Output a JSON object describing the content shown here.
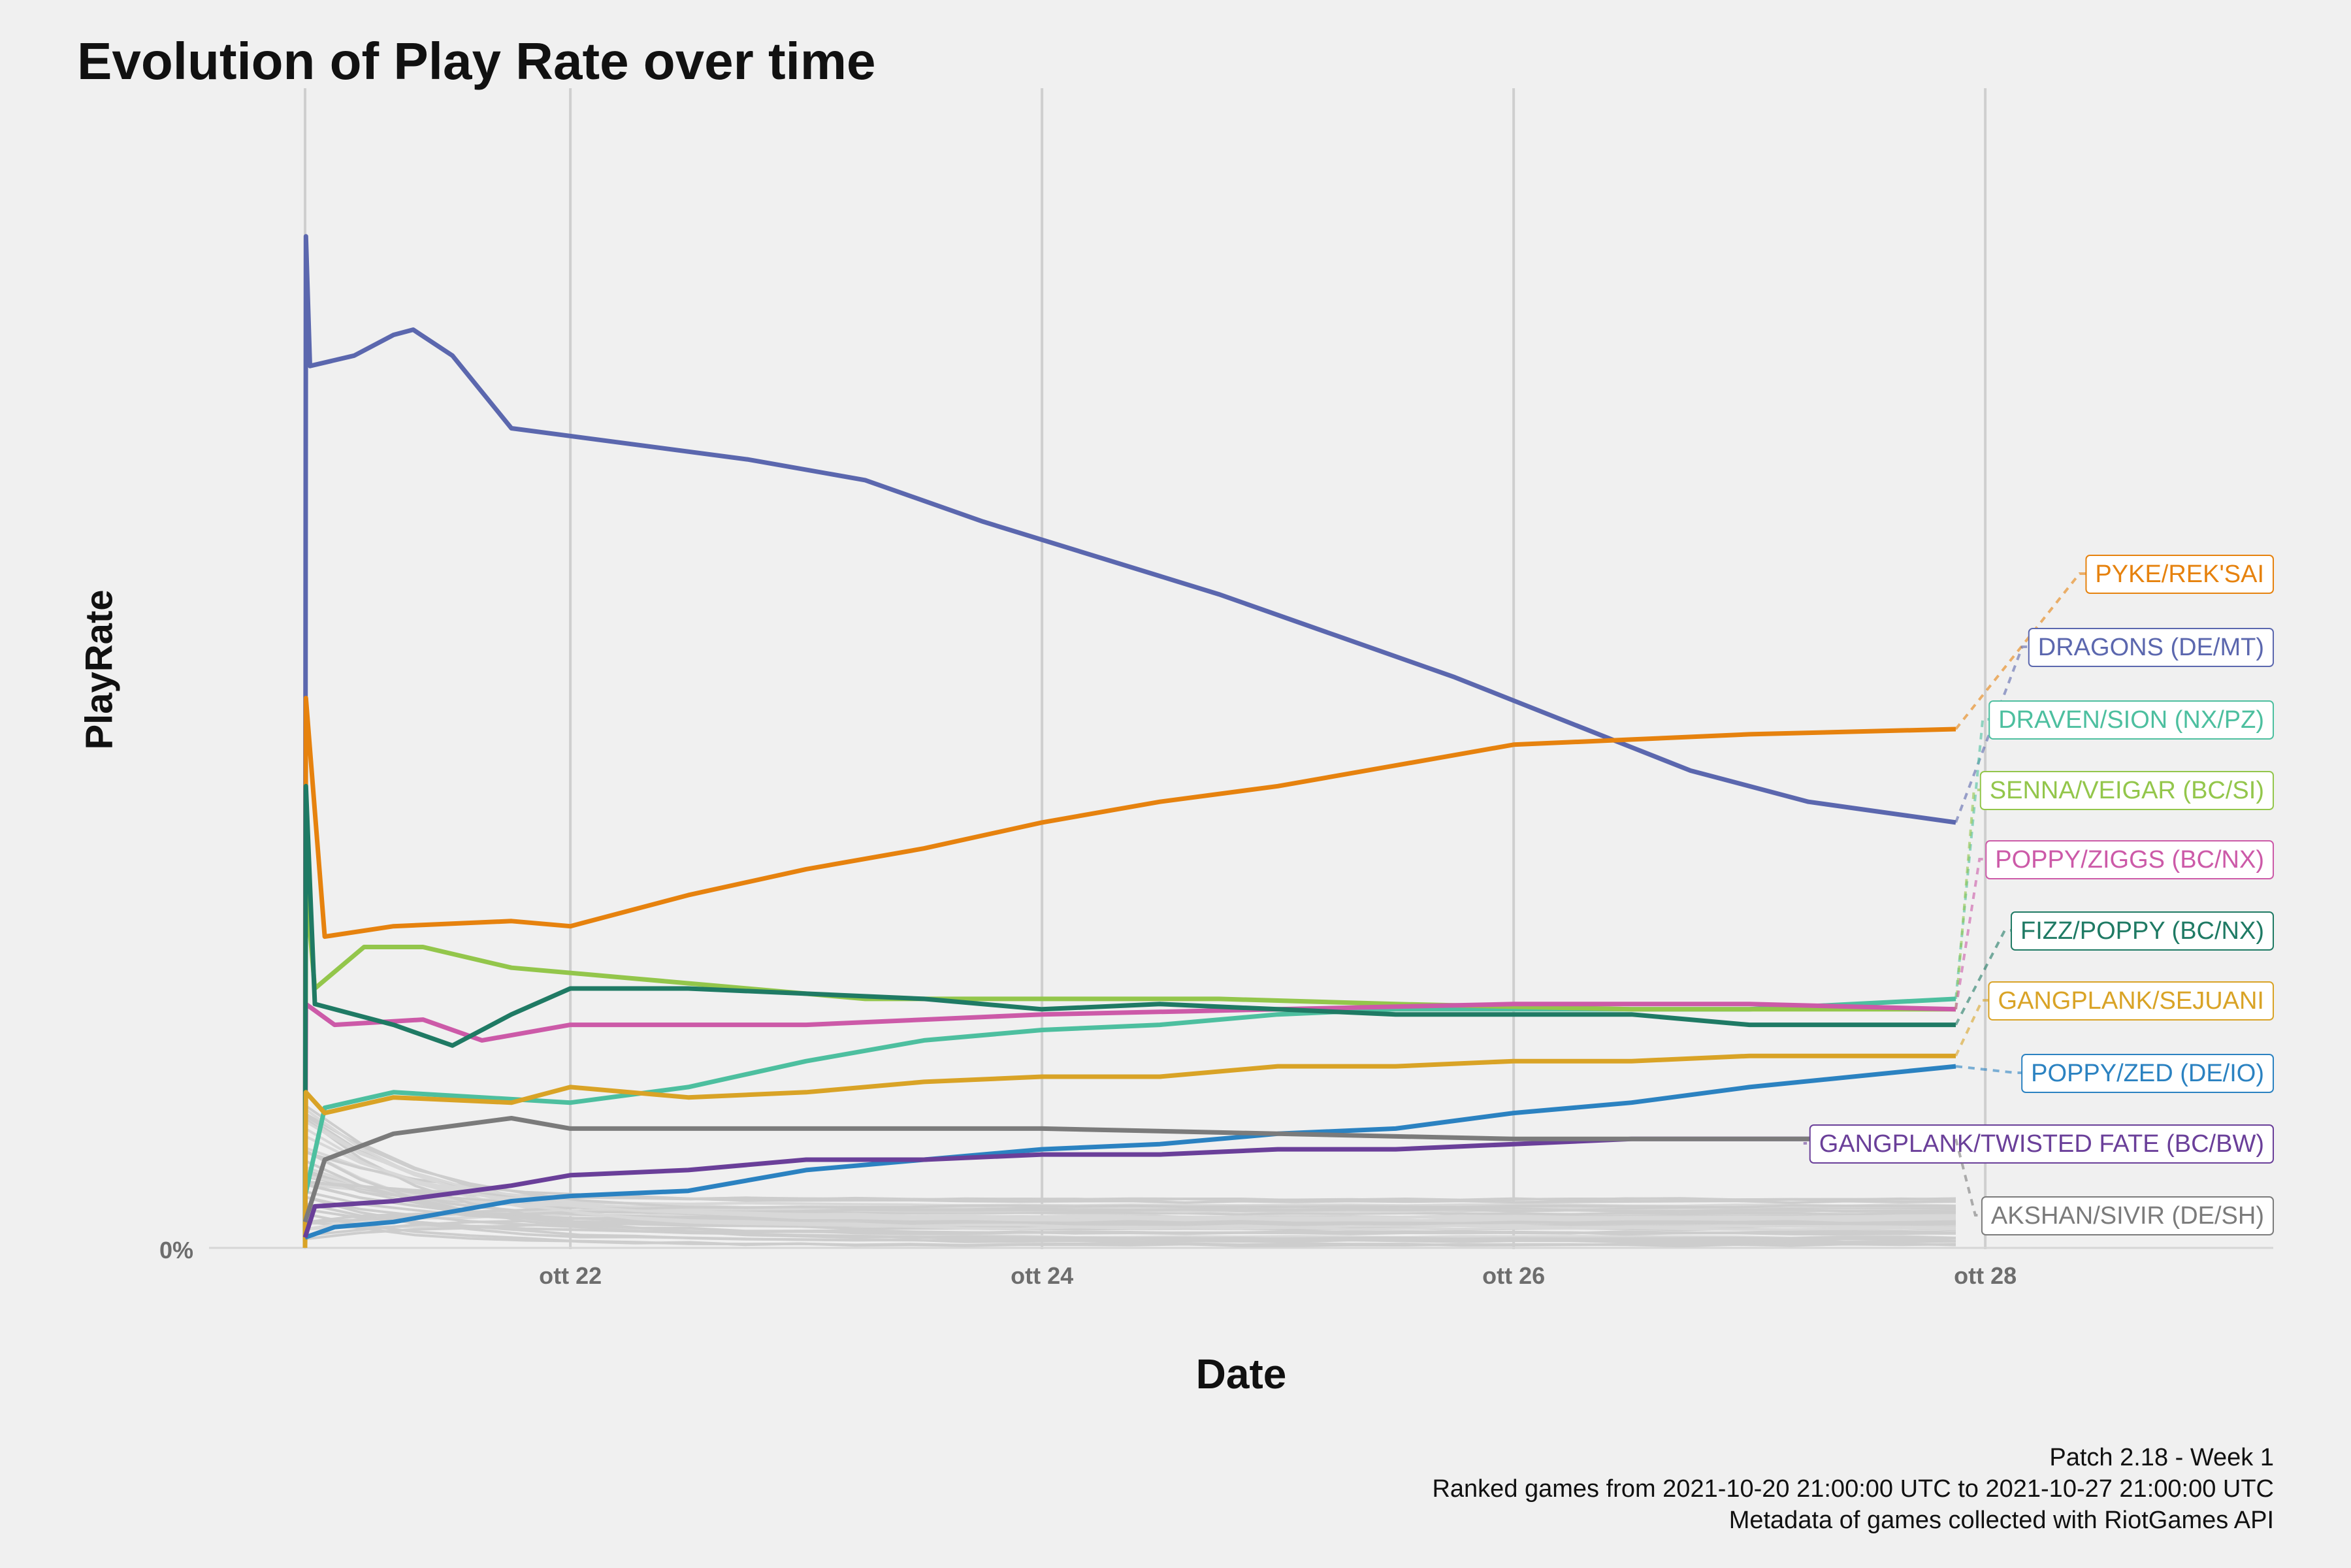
{
  "title": "Evolution of Play Rate over time",
  "caption": [
    "Patch 2.18 - Week 1",
    "Ranked games from 2021-10-20 21:00:00 UTC to 2021-10-27 21:00:00 UTC",
    "Metadata of games collected with RiotGames API"
  ],
  "chart_data": {
    "type": "line",
    "title": "Evolution of Play Rate over time",
    "xlabel": "Date",
    "ylabel": "PlayRate",
    "x_ticks": [
      "ott 22",
      "ott 24",
      "ott 26",
      "ott 28"
    ],
    "y_ticks": [
      "0%"
    ],
    "grid": "vertical major gridlines only",
    "legend": "direct labels at right end of lines",
    "background_series": "many minor decks drawn in light grey near 0%",
    "series": [
      {
        "name": "DRAGONS (DE/MT)",
        "color": "#5b67ae",
        "points": [
          [
            "2021-10-20 21:00",
            0
          ],
          [
            "2021-10-20 21:05",
            1.95
          ],
          [
            "2021-10-20 21:30",
            1.7
          ],
          [
            "2021-10-21 02:00",
            1.72
          ],
          [
            "2021-10-21 06:00",
            1.76
          ],
          [
            "2021-10-21 08:00",
            1.77
          ],
          [
            "2021-10-21 12:00",
            1.72
          ],
          [
            "2021-10-21 18:00",
            1.58
          ],
          [
            "2021-10-22 06:00",
            1.55
          ],
          [
            "2021-10-22 18:00",
            1.52
          ],
          [
            "2021-10-23 06:00",
            1.48
          ],
          [
            "2021-10-23 18:00",
            1.4
          ],
          [
            "2021-10-24 06:00",
            1.33
          ],
          [
            "2021-10-24 18:00",
            1.26
          ],
          [
            "2021-10-25 06:00",
            1.18
          ],
          [
            "2021-10-25 18:00",
            1.1
          ],
          [
            "2021-10-26 06:00",
            1.01
          ],
          [
            "2021-10-26 18:00",
            0.92
          ],
          [
            "2021-10-27 06:00",
            0.86
          ],
          [
            "2021-10-27 21:00",
            0.82
          ]
        ]
      },
      {
        "name": "PYKE/REK'SAI",
        "color": "#e6820e",
        "points": [
          [
            "2021-10-20 21:00",
            0
          ],
          [
            "2021-10-20 21:05",
            1.06
          ],
          [
            "2021-10-20 23:00",
            0.6
          ],
          [
            "2021-10-21 06:00",
            0.62
          ],
          [
            "2021-10-21 18:00",
            0.63
          ],
          [
            "2021-10-22 00:00",
            0.62
          ],
          [
            "2021-10-22 12:00",
            0.68
          ],
          [
            "2021-10-23 00:00",
            0.73
          ],
          [
            "2021-10-23 12:00",
            0.77
          ],
          [
            "2021-10-24 00:00",
            0.82
          ],
          [
            "2021-10-24 12:00",
            0.86
          ],
          [
            "2021-10-25 00:00",
            0.89
          ],
          [
            "2021-10-25 12:00",
            0.93
          ],
          [
            "2021-10-26 00:00",
            0.97
          ],
          [
            "2021-10-26 12:00",
            0.98
          ],
          [
            "2021-10-27 00:00",
            0.99
          ],
          [
            "2021-10-27 21:00",
            1.0
          ]
        ]
      },
      {
        "name": "DRAVEN/SION (NX/PZ)",
        "color": "#4dbf9f",
        "points": [
          [
            "2021-10-20 21:00",
            0.1
          ],
          [
            "2021-10-20 23:00",
            0.27
          ],
          [
            "2021-10-21 06:00",
            0.3
          ],
          [
            "2021-10-22 00:00",
            0.28
          ],
          [
            "2021-10-22 12:00",
            0.31
          ],
          [
            "2021-10-23 00:00",
            0.36
          ],
          [
            "2021-10-23 12:00",
            0.4
          ],
          [
            "2021-10-24 00:00",
            0.42
          ],
          [
            "2021-10-24 12:00",
            0.43
          ],
          [
            "2021-10-25 00:00",
            0.45
          ],
          [
            "2021-10-25 12:00",
            0.46
          ],
          [
            "2021-10-26 00:00",
            0.46
          ],
          [
            "2021-10-27 00:00",
            0.46
          ],
          [
            "2021-10-27 21:00",
            0.48
          ]
        ]
      },
      {
        "name": "SENNA/VEIGAR (BC/SI)",
        "color": "#93c64b",
        "points": [
          [
            "2021-10-20 21:00",
            0
          ],
          [
            "2021-10-20 21:05",
            0.7
          ],
          [
            "2021-10-20 22:00",
            0.5
          ],
          [
            "2021-10-21 03:00",
            0.58
          ],
          [
            "2021-10-21 09:00",
            0.58
          ],
          [
            "2021-10-21 18:00",
            0.54
          ],
          [
            "2021-10-22 06:00",
            0.52
          ],
          [
            "2021-10-22 18:00",
            0.5
          ],
          [
            "2021-10-23 06:00",
            0.48
          ],
          [
            "2021-10-23 18:00",
            0.48
          ],
          [
            "2021-10-24 06:00",
            0.48
          ],
          [
            "2021-10-24 18:00",
            0.48
          ],
          [
            "2021-10-25 12:00",
            0.47
          ],
          [
            "2021-10-26 12:00",
            0.46
          ],
          [
            "2021-10-27 21:00",
            0.46
          ]
        ]
      },
      {
        "name": "POPPY/ZIGGS (BC/NX)",
        "color": "#cc5aa8",
        "points": [
          [
            "2021-10-20 21:00",
            0
          ],
          [
            "2021-10-20 21:05",
            0.47
          ],
          [
            "2021-10-21 00:00",
            0.43
          ],
          [
            "2021-10-21 09:00",
            0.44
          ],
          [
            "2021-10-21 15:00",
            0.4
          ],
          [
            "2021-10-22 00:00",
            0.43
          ],
          [
            "2021-10-22 12:00",
            0.43
          ],
          [
            "2021-10-23 00:00",
            0.43
          ],
          [
            "2021-10-23 12:00",
            0.44
          ],
          [
            "2021-10-24 00:00",
            0.45
          ],
          [
            "2021-10-25 00:00",
            0.46
          ],
          [
            "2021-10-26 00:00",
            0.47
          ],
          [
            "2021-10-27 00:00",
            0.47
          ],
          [
            "2021-10-27 21:00",
            0.46
          ]
        ]
      },
      {
        "name": "FIZZ/POPPY (BC/NX)",
        "color": "#1f7a64",
        "points": [
          [
            "2021-10-20 21:00",
            0
          ],
          [
            "2021-10-20 21:05",
            0.89
          ],
          [
            "2021-10-20 22:00",
            0.47
          ],
          [
            "2021-10-21 06:00",
            0.43
          ],
          [
            "2021-10-21 12:00",
            0.39
          ],
          [
            "2021-10-21 18:00",
            0.45
          ],
          [
            "2021-10-22 00:00",
            0.5
          ],
          [
            "2021-10-22 12:00",
            0.5
          ],
          [
            "2021-10-23 00:00",
            0.49
          ],
          [
            "2021-10-23 12:00",
            0.48
          ],
          [
            "2021-10-24 00:00",
            0.46
          ],
          [
            "2021-10-24 12:00",
            0.47
          ],
          [
            "2021-10-25 00:00",
            0.46
          ],
          [
            "2021-10-25 12:00",
            0.45
          ],
          [
            "2021-10-26 00:00",
            0.45
          ],
          [
            "2021-10-26 12:00",
            0.45
          ],
          [
            "2021-10-27 00:00",
            0.43
          ],
          [
            "2021-10-27 21:00",
            0.43
          ]
        ]
      },
      {
        "name": "GANGPLANK/SEJUANI",
        "color": "#d9a326",
        "points": [
          [
            "2021-10-20 21:00",
            0
          ],
          [
            "2021-10-20 21:05",
            0.3
          ],
          [
            "2021-10-20 23:00",
            0.26
          ],
          [
            "2021-10-21 06:00",
            0.29
          ],
          [
            "2021-10-21 18:00",
            0.28
          ],
          [
            "2021-10-22 00:00",
            0.31
          ],
          [
            "2021-10-22 12:00",
            0.29
          ],
          [
            "2021-10-23 00:00",
            0.3
          ],
          [
            "2021-10-23 12:00",
            0.32
          ],
          [
            "2021-10-24 00:00",
            0.33
          ],
          [
            "2021-10-24 12:00",
            0.33
          ],
          [
            "2021-10-25 00:00",
            0.35
          ],
          [
            "2021-10-25 12:00",
            0.35
          ],
          [
            "2021-10-26 00:00",
            0.36
          ],
          [
            "2021-10-26 12:00",
            0.36
          ],
          [
            "2021-10-27 00:00",
            0.37
          ],
          [
            "2021-10-27 21:00",
            0.37
          ]
        ]
      },
      {
        "name": "POPPY/ZED (DE/IO)",
        "color": "#2b82c1",
        "points": [
          [
            "2021-10-20 21:00",
            0.02
          ],
          [
            "2021-10-21 00:00",
            0.04
          ],
          [
            "2021-10-21 06:00",
            0.05
          ],
          [
            "2021-10-21 18:00",
            0.09
          ],
          [
            "2021-10-22 00:00",
            0.1
          ],
          [
            "2021-10-22 12:00",
            0.11
          ],
          [
            "2021-10-23 00:00",
            0.15
          ],
          [
            "2021-10-23 12:00",
            0.17
          ],
          [
            "2021-10-24 00:00",
            0.19
          ],
          [
            "2021-10-24 12:00",
            0.2
          ],
          [
            "2021-10-25 00:00",
            0.22
          ],
          [
            "2021-10-25 12:00",
            0.23
          ],
          [
            "2021-10-26 00:00",
            0.26
          ],
          [
            "2021-10-26 12:00",
            0.28
          ],
          [
            "2021-10-27 00:00",
            0.31
          ],
          [
            "2021-10-27 21:00",
            0.35
          ]
        ]
      },
      {
        "name": "GANGPLANK/TWISTED FATE (BC/BW)",
        "color": "#6a3f99",
        "points": [
          [
            "2021-10-20 21:00",
            0.02
          ],
          [
            "2021-10-20 22:00",
            0.08
          ],
          [
            "2021-10-21 06:00",
            0.09
          ],
          [
            "2021-10-21 18:00",
            0.12
          ],
          [
            "2021-10-22 00:00",
            0.14
          ],
          [
            "2021-10-22 12:00",
            0.15
          ],
          [
            "2021-10-23 00:00",
            0.17
          ],
          [
            "2021-10-23 12:00",
            0.17
          ],
          [
            "2021-10-24 00:00",
            0.18
          ],
          [
            "2021-10-24 12:00",
            0.18
          ],
          [
            "2021-10-25 00:00",
            0.19
          ],
          [
            "2021-10-25 12:00",
            0.19
          ],
          [
            "2021-10-26 00:00",
            0.2
          ],
          [
            "2021-10-26 12:00",
            0.21
          ],
          [
            "2021-10-27 00:00",
            0.21
          ],
          [
            "2021-10-27 21:00",
            0.21
          ]
        ]
      },
      {
        "name": "AKSHAN/SIVIR (DE/SH)",
        "color": "#7b7b7b",
        "points": [
          [
            "2021-10-20 21:00",
            0.05
          ],
          [
            "2021-10-20 23:00",
            0.17
          ],
          [
            "2021-10-21 06:00",
            0.22
          ],
          [
            "2021-10-21 18:00",
            0.25
          ],
          [
            "2021-10-22 00:00",
            0.23
          ],
          [
            "2021-10-22 12:00",
            0.23
          ],
          [
            "2021-10-23 00:00",
            0.23
          ],
          [
            "2021-10-24 00:00",
            0.23
          ],
          [
            "2021-10-25 00:00",
            0.22
          ],
          [
            "2021-10-26 00:00",
            0.21
          ],
          [
            "2021-10-27 00:00",
            0.21
          ],
          [
            "2021-10-27 21:00",
            0.21
          ]
        ]
      }
    ]
  }
}
